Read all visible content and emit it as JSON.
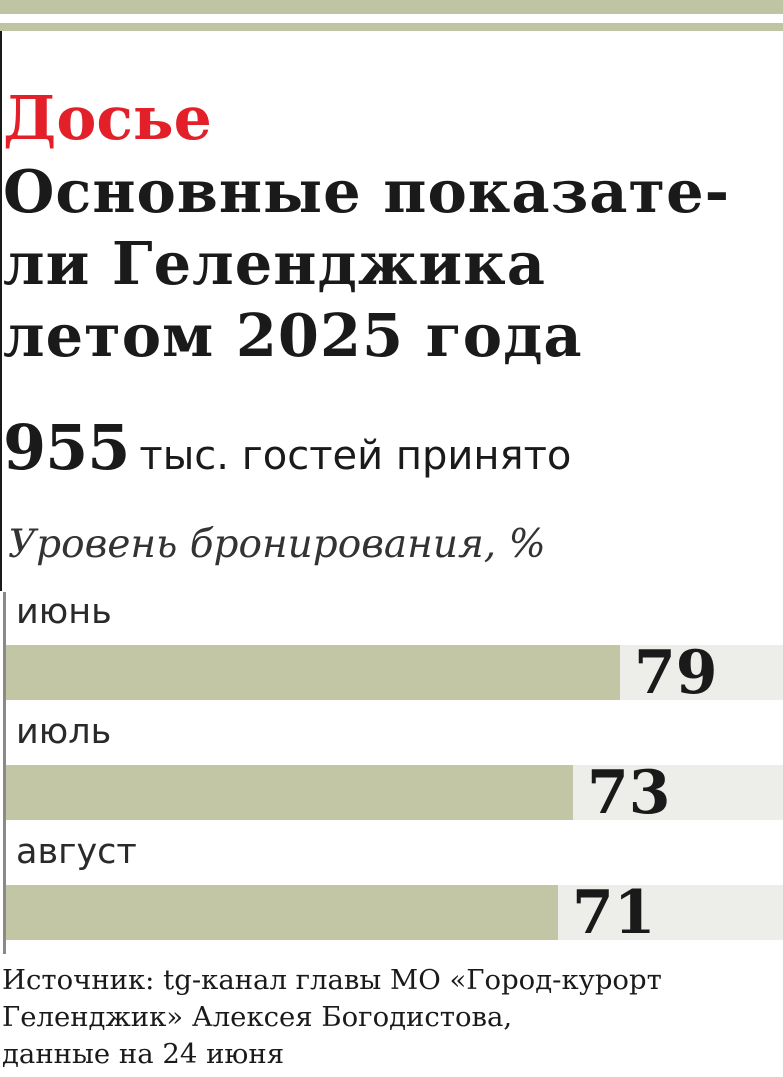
{
  "rubric": "Досье",
  "headline": {
    "lines": [
      "Основные показате-",
      "ли Геленджика",
      "летом 2025 года"
    ]
  },
  "stat": {
    "value": "955",
    "text": "тыс. гостей принято"
  },
  "colors": {
    "accent_red": "#e3202a",
    "bar_fill": "#c2c6a5",
    "bar_track": "#ededea",
    "band": "#bfc5a3"
  },
  "chart_data": {
    "type": "bar",
    "orientation": "horizontal",
    "title": "Уровень бронирования, %",
    "categories": [
      "июнь",
      "июль",
      "август"
    ],
    "values": [
      79,
      73,
      71
    ],
    "labels": [
      "79",
      "73",
      "71"
    ],
    "xlim": [
      0,
      100
    ],
    "grid": false
  },
  "source": {
    "lines": [
      "Источник: tg-канал главы МО «Город-курорт",
      "Геленджик» Алексея Богодистова,",
      "данные на 24 июня"
    ]
  }
}
